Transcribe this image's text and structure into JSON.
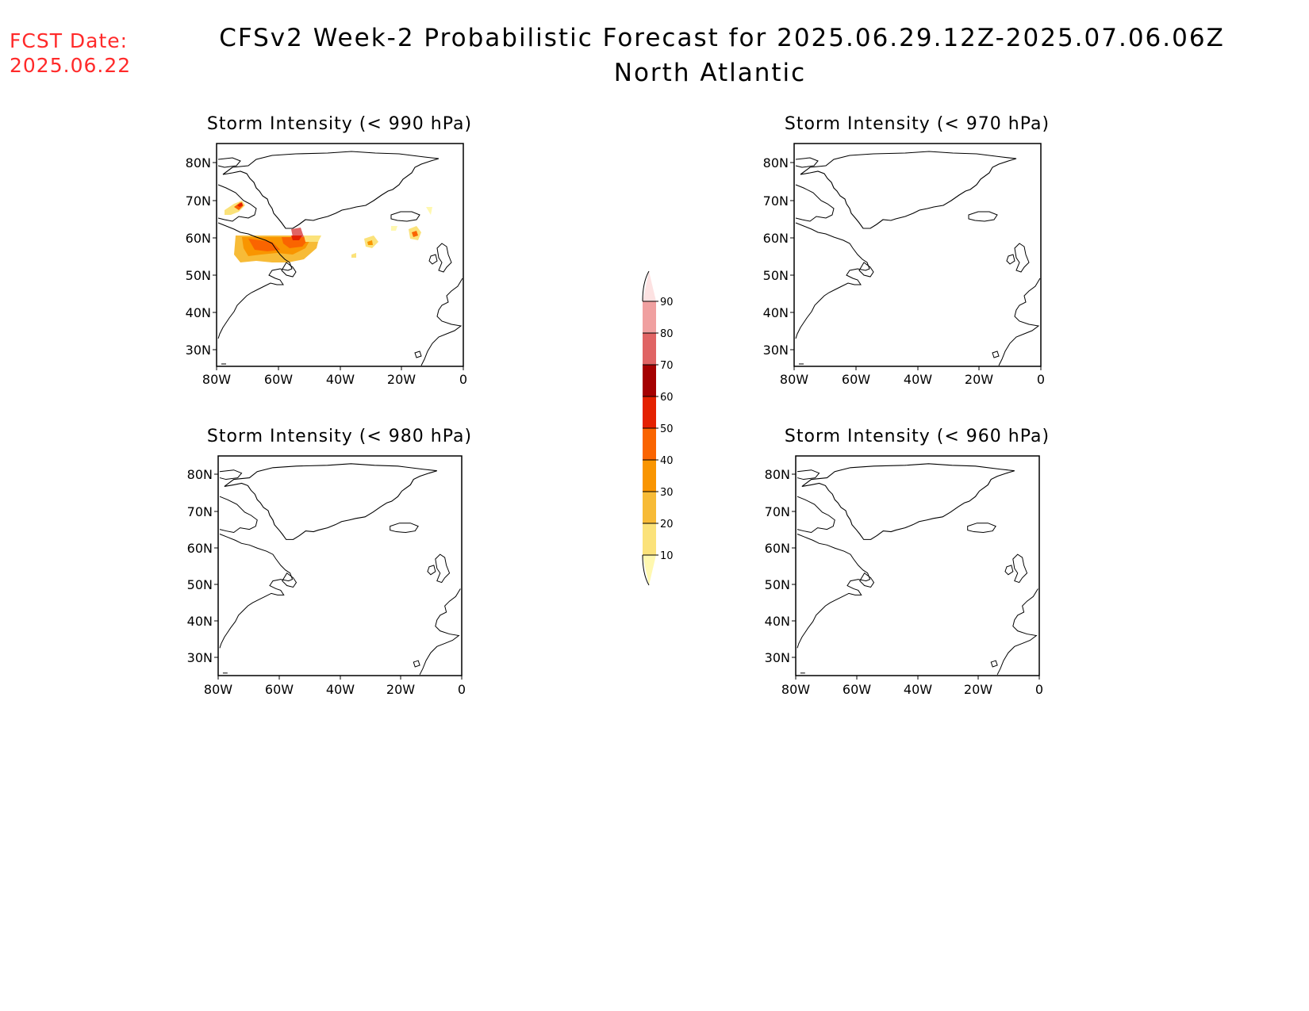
{
  "header": {
    "fcst_label": "FCST Date:",
    "fcst_date": "2025.06.22",
    "title": "CFSv2 Week-2 Probabilistic Forecast for 2025.06.29.12Z-2025.07.06.06Z",
    "subtitle": "North Atlantic"
  },
  "map": {
    "lon_ticks": [
      "80W",
      "60W",
      "40W",
      "20W",
      "0"
    ],
    "lat_ticks": [
      "80N",
      "70N",
      "60N",
      "50N",
      "40N",
      "30N"
    ],
    "lon_range": [
      -80,
      0
    ],
    "lat_range": [
      25,
      85
    ]
  },
  "panels": [
    {
      "id": "p990",
      "title": "Storm Intensity (< 990 hPa)"
    },
    {
      "id": "p970",
      "title": "Storm Intensity (< 970 hPa)"
    },
    {
      "id": "p980",
      "title": "Storm Intensity (< 980 hPa)"
    },
    {
      "id": "p960",
      "title": "Storm Intensity (< 960 hPa)"
    }
  ],
  "colorbar": {
    "levels": [
      "10",
      "20",
      "30",
      "40",
      "50",
      "60",
      "70",
      "80",
      "90"
    ],
    "colors": [
      "#fff8b0",
      "#fbe27a",
      "#f7bb37",
      "#f99500",
      "#fa6400",
      "#e42100",
      "#a50000",
      "#e06464",
      "#f0a0a0",
      "#fde2e2"
    ]
  }
}
